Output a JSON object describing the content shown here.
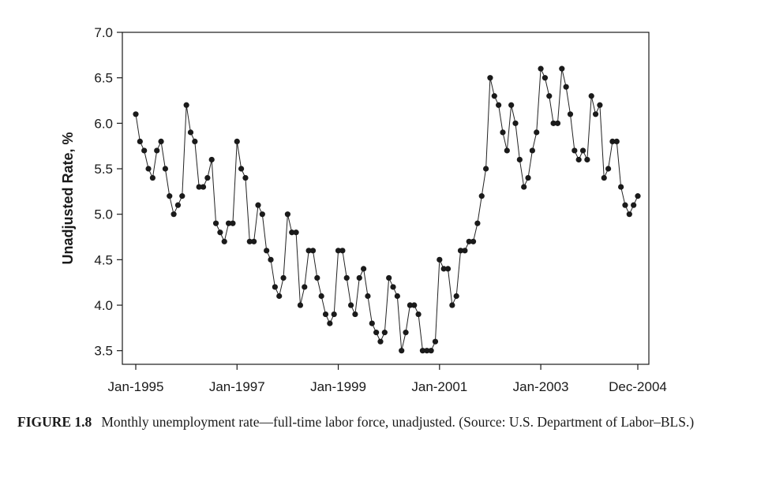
{
  "caption": {
    "label": "FIGURE 1.8",
    "text": "Monthly unemployment rate—full-time labor force, unadjusted. (Source: U.S. Department of Labor–BLS.)"
  },
  "colors": {
    "line": "#222222",
    "marker": "#1a1a1a",
    "axis": "#1a1a1a"
  },
  "chart_data": {
    "type": "line",
    "title": "",
    "xlabel": "",
    "ylabel": "Unadjusted Rate, %",
    "x_start": "Jan-1995",
    "x_end": "Dec-2004",
    "x_ticks": [
      "Jan-1995",
      "Jan-1997",
      "Jan-1999",
      "Jan-2001",
      "Jan-2003",
      "Dec-2004"
    ],
    "ylim": [
      3.35,
      7.0
    ],
    "y_ticks": [
      "3.5",
      "4.0",
      "4.5",
      "5.0",
      "5.5",
      "6.0",
      "6.5",
      "7.0"
    ],
    "grid": false,
    "markers": "filled circles",
    "series": [
      {
        "values": [
          6.1,
          5.8,
          5.7,
          5.5,
          5.4,
          5.7,
          5.8,
          5.5,
          5.2,
          5.0,
          5.1,
          5.2,
          6.2,
          5.9,
          5.8,
          5.3,
          5.3,
          5.4,
          5.6,
          4.9,
          4.8,
          4.7,
          4.9,
          4.9,
          5.8,
          5.5,
          5.4,
          4.7,
          4.7,
          5.1,
          5.0,
          4.6,
          4.5,
          4.2,
          4.1,
          4.3,
          5.0,
          4.8,
          4.8,
          4.0,
          4.2,
          4.6,
          4.6,
          4.3,
          4.1,
          3.9,
          3.8,
          3.9,
          4.6,
          4.6,
          4.3,
          4.0,
          3.9,
          4.3,
          4.4,
          4.1,
          3.8,
          3.7,
          3.6,
          3.7,
          4.3,
          4.2,
          4.1,
          3.5,
          3.7,
          4.0,
          4.0,
          3.9,
          3.5,
          3.5,
          3.5,
          3.6,
          4.5,
          4.4,
          4.4,
          4.0,
          4.1,
          4.6,
          4.6,
          4.7,
          4.7,
          4.9,
          5.2,
          5.5,
          6.5,
          6.3,
          6.2,
          5.9,
          5.7,
          6.2,
          6.0,
          5.6,
          5.3,
          5.4,
          5.7,
          5.9,
          6.6,
          6.5,
          6.3,
          6.0,
          6.0,
          6.6,
          6.4,
          6.1,
          5.7,
          5.6,
          5.7,
          5.6,
          6.3,
          6.1,
          6.2,
          5.4,
          5.5,
          5.8,
          5.8,
          5.3,
          5.1,
          5.0,
          5.1,
          5.2
        ]
      }
    ]
  }
}
